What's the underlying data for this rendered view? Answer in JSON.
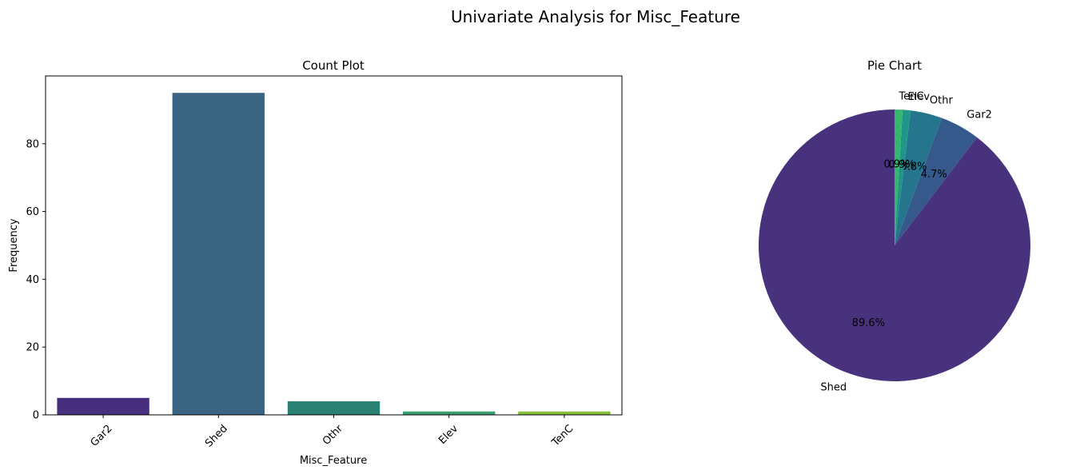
{
  "figure": {
    "suptitle": "Univariate Analysis for Misc_Feature"
  },
  "chart_data": [
    {
      "type": "bar",
      "title": "Count Plot",
      "xlabel": "Misc_Feature",
      "ylabel": "Frequency",
      "categories": [
        "Gar2",
        "Shed",
        "Othr",
        "Elev",
        "TenC"
      ],
      "values": [
        5,
        95,
        4,
        1,
        1
      ],
      "colors": [
        "#472f7d",
        "#3b6483",
        "#2a8173",
        "#3aa070",
        "#86bf3e"
      ],
      "ylim": [
        0,
        100
      ],
      "yticks": [
        0,
        20,
        40,
        60,
        80
      ],
      "xtick_rotation": 45,
      "grid": false
    },
    {
      "type": "pie",
      "title": "Pie Chart",
      "categories": [
        "Shed",
        "Gar2",
        "Othr",
        "Elev",
        "TenC"
      ],
      "values": [
        95,
        5,
        4,
        1,
        1
      ],
      "percent_labels": [
        "89.6%",
        "4.7%",
        "3.8%",
        "0.9%",
        "0.9%"
      ],
      "colors": [
        "#48327e",
        "#35598b",
        "#25768c",
        "#1f9688",
        "#35b56e"
      ],
      "start_angle_deg": 90,
      "direction": "counterclockwise"
    }
  ]
}
